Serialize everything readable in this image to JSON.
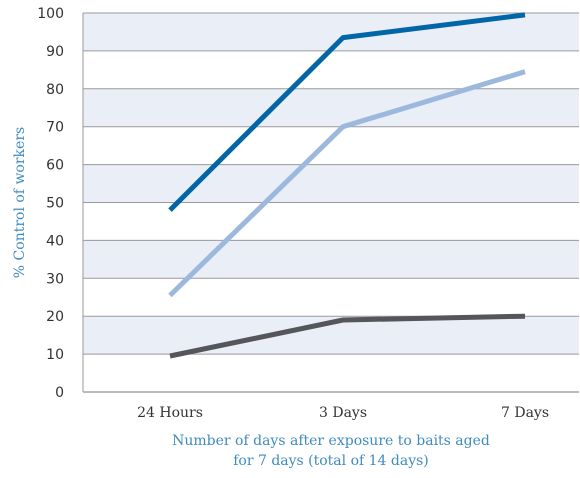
{
  "chart_data": {
    "type": "line",
    "categories": [
      "24 Hours",
      "3 Days",
      "7 Days"
    ],
    "series": [
      {
        "values": [
          48,
          93.5,
          99.5
        ],
        "color": "#0066a8"
      },
      {
        "values": [
          25.5,
          70,
          84.5
        ],
        "color": "#9db8dd"
      },
      {
        "values": [
          9.5,
          19,
          20
        ],
        "color": "#555659"
      }
    ],
    "xlabel": [
      "Number of days after exposure to baits aged",
      "for 7 days (total of 14 days)"
    ],
    "ylabel": "% Control of workers",
    "ylim": [
      0,
      100
    ],
    "yticks": [
      0,
      10,
      20,
      30,
      40,
      50,
      60,
      70,
      80,
      90,
      100
    ],
    "grid": true,
    "band_colors": [
      "#e9eef7",
      "#ffffff"
    ],
    "label_color": "#3f8bbf"
  }
}
